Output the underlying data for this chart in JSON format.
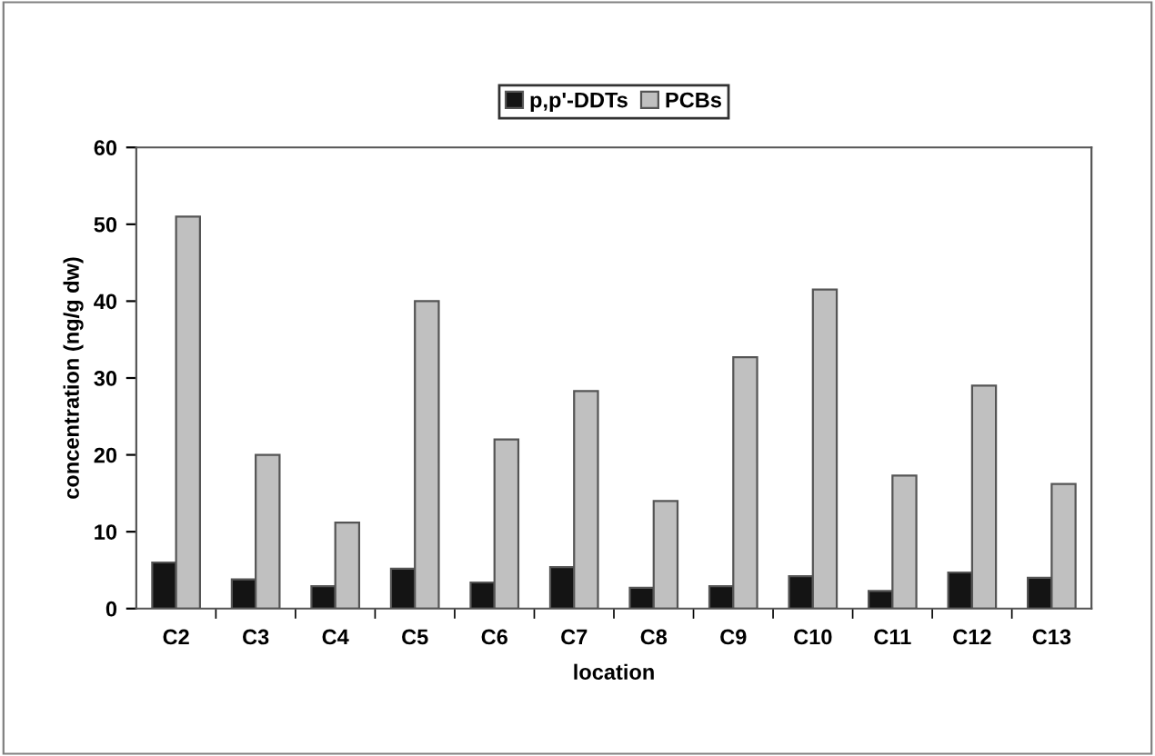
{
  "chart_data": {
    "type": "bar",
    "xlabel": "location",
    "ylabel": "concentration (ng/g dw)",
    "categories": [
      "C2",
      "C3",
      "C4",
      "C5",
      "C6",
      "C7",
      "C8",
      "C9",
      "C10",
      "C11",
      "C12",
      "C13"
    ],
    "series": [
      {
        "name": "p,p'-DDTs",
        "color": "#141414",
        "values": [
          6.0,
          3.8,
          2.9,
          5.2,
          3.4,
          5.4,
          2.7,
          2.9,
          4.2,
          2.3,
          4.7,
          4.0
        ]
      },
      {
        "name": "PCBs",
        "color": "#c0c0c0",
        "values": [
          51,
          20,
          11.2,
          40,
          22,
          28.3,
          14.0,
          32.7,
          41.5,
          17.3,
          29.0,
          16.2
        ]
      }
    ],
    "ylim": [
      0,
      60
    ],
    "yticks": [
      0,
      10,
      20,
      30,
      40,
      50,
      60
    ],
    "grid": false,
    "legend": "top"
  }
}
